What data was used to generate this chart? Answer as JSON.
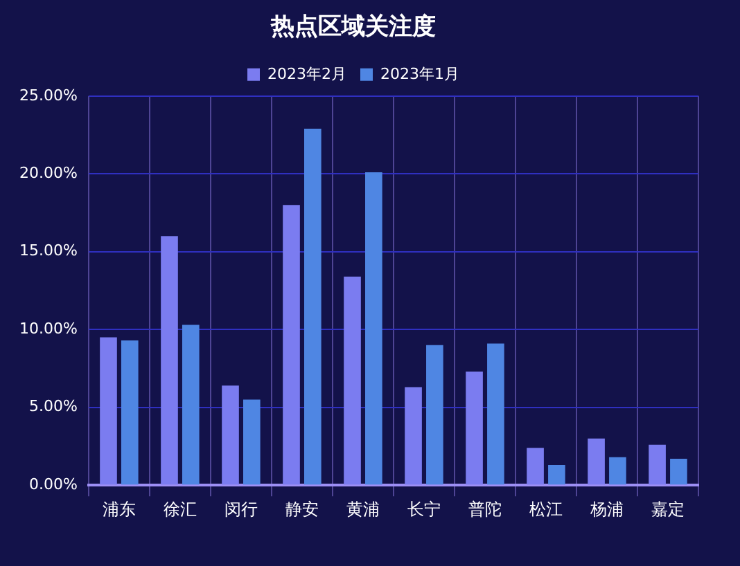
{
  "chart_data": {
    "type": "bar",
    "title": "热点区域关注度",
    "categories": [
      "浦东",
      "徐汇",
      "闵行",
      "静安",
      "黄浦",
      "长宁",
      "普陀",
      "松江",
      "杨浦",
      "嘉定"
    ],
    "series": [
      {
        "name": "2023年2月",
        "color": "#7b7cf0",
        "values": [
          9.5,
          16.0,
          6.4,
          18.0,
          13.4,
          6.3,
          7.3,
          2.4,
          3.0,
          2.6
        ]
      },
      {
        "name": "2023年1月",
        "color": "#4f86e3",
        "values": [
          9.3,
          10.3,
          5.5,
          22.9,
          20.1,
          9.0,
          9.1,
          1.3,
          1.8,
          1.7
        ]
      }
    ],
    "ylim": [
      0,
      25
    ],
    "yticks": [
      {
        "value": 0,
        "label": "0.00%"
      },
      {
        "value": 5,
        "label": "5.00%"
      },
      {
        "value": 10,
        "label": "10.00%"
      },
      {
        "value": 15,
        "label": "15.00%"
      },
      {
        "value": 20,
        "label": "20.00%"
      },
      {
        "value": 25,
        "label": "25.00%"
      }
    ],
    "grid": true,
    "legend": "top"
  }
}
